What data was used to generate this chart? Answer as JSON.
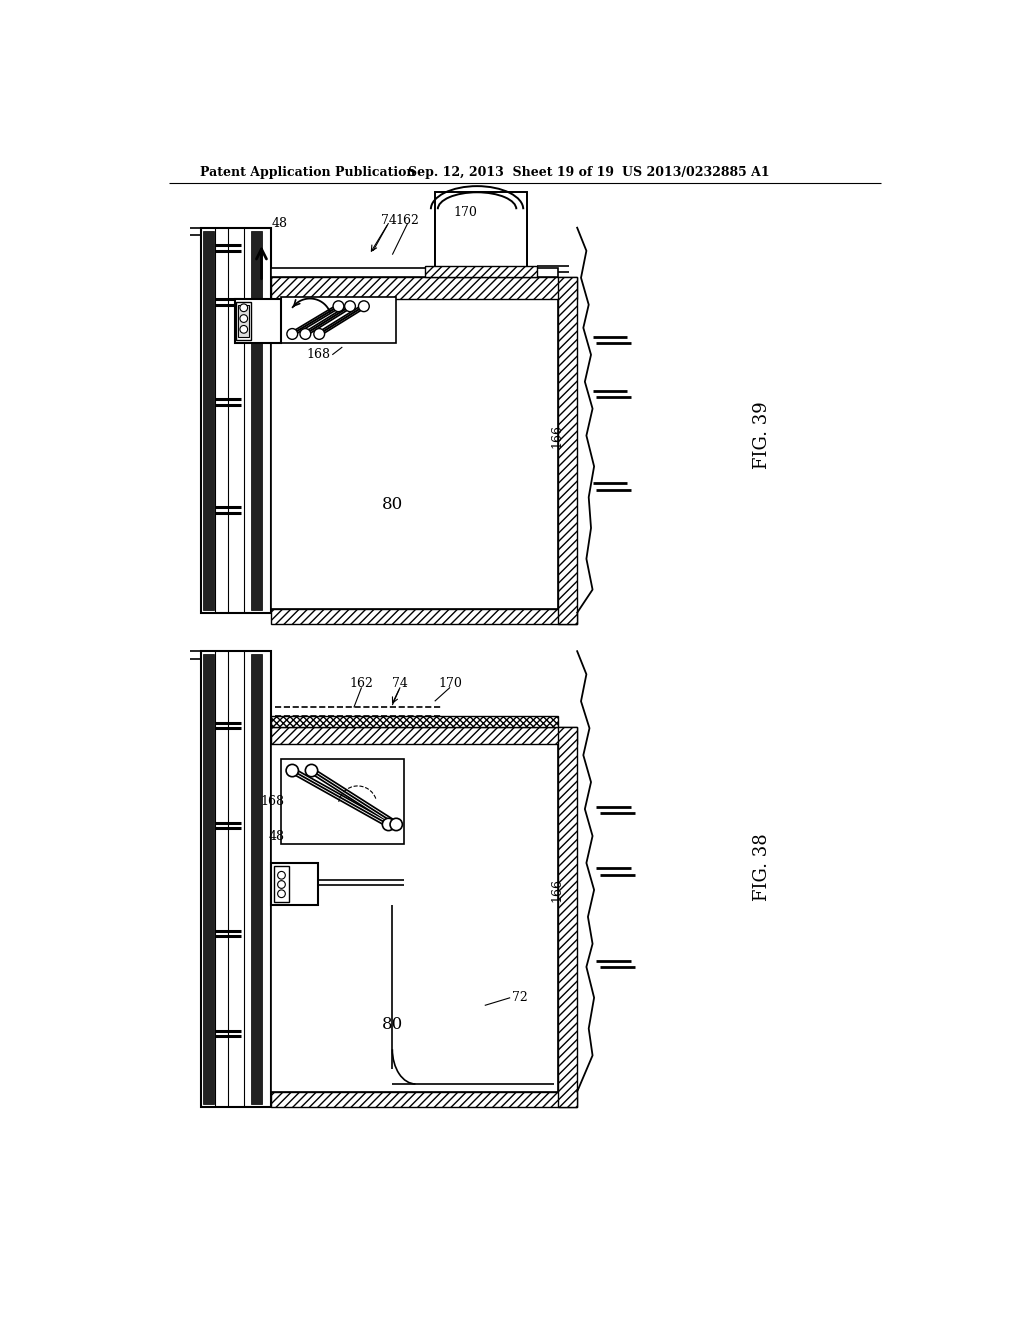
{
  "header_left": "Patent Application Publication",
  "header_mid": "Sep. 12, 2013  Sheet 19 of 19",
  "header_right": "US 2013/0232885 A1",
  "fig39": "FIG. 39",
  "fig38": "FIG. 38",
  "bg_color": "#ffffff"
}
